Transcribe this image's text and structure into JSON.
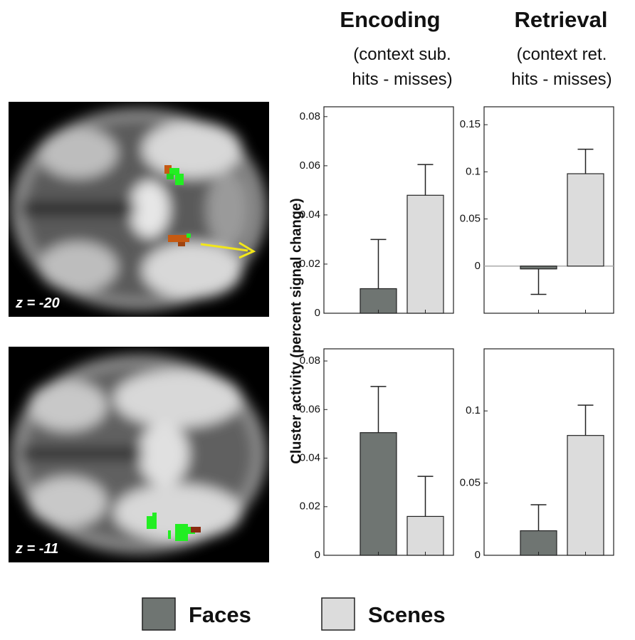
{
  "figure": {
    "columns": [
      {
        "title": "Encoding",
        "subtitle": [
          "(context sub.",
          "hits - misses)"
        ]
      },
      {
        "title": "Retrieval",
        "subtitle": [
          "(context ret.",
          "hits - misses)"
        ]
      }
    ],
    "slices": [
      "z = -20",
      "z = -11"
    ],
    "y_label": "Cluster activity (percent signal change)"
  },
  "chart_data": [
    {
      "type": "bar",
      "ylim": [
        0,
        0.084
      ],
      "yticks": [
        0,
        0.02,
        0.04,
        0.06,
        0.08
      ],
      "series": [
        {
          "name": "Faces",
          "color": "#6f7572",
          "values": [
            0.01
          ],
          "errors": [
            0.02
          ]
        },
        {
          "name": "Scenes",
          "color": "#dcdcdc",
          "values": [
            0.048
          ],
          "errors": [
            0.0125
          ]
        }
      ]
    },
    {
      "type": "bar",
      "ylim": [
        -0.05,
        0.169
      ],
      "yticks": [
        0,
        0.05,
        0.1,
        0.15
      ],
      "zero_line": true,
      "series": [
        {
          "name": "Faces",
          "color": "#6f7572",
          "values": [
            -0.003
          ],
          "errors": [
            0.027
          ]
        },
        {
          "name": "Scenes",
          "color": "#dcdcdc",
          "values": [
            0.098
          ],
          "errors": [
            0.026
          ]
        }
      ]
    },
    {
      "type": "bar",
      "ylim": [
        0,
        0.085
      ],
      "yticks": [
        0,
        0.02,
        0.04,
        0.06,
        0.08
      ],
      "series": [
        {
          "name": "Faces",
          "color": "#6f7572",
          "values": [
            0.0505
          ],
          "errors": [
            0.019
          ]
        },
        {
          "name": "Scenes",
          "color": "#dcdcdc",
          "values": [
            0.016
          ],
          "errors": [
            0.0165
          ]
        }
      ]
    },
    {
      "type": "bar",
      "ylim": [
        0,
        0.143
      ],
      "yticks": [
        0,
        0.05,
        0.1
      ],
      "series": [
        {
          "name": "Faces",
          "color": "#6f7572",
          "values": [
            0.017
          ],
          "errors": [
            0.018
          ]
        },
        {
          "name": "Scenes",
          "color": "#dcdcdc",
          "values": [
            0.083
          ],
          "errors": [
            0.021
          ]
        }
      ]
    }
  ]
}
